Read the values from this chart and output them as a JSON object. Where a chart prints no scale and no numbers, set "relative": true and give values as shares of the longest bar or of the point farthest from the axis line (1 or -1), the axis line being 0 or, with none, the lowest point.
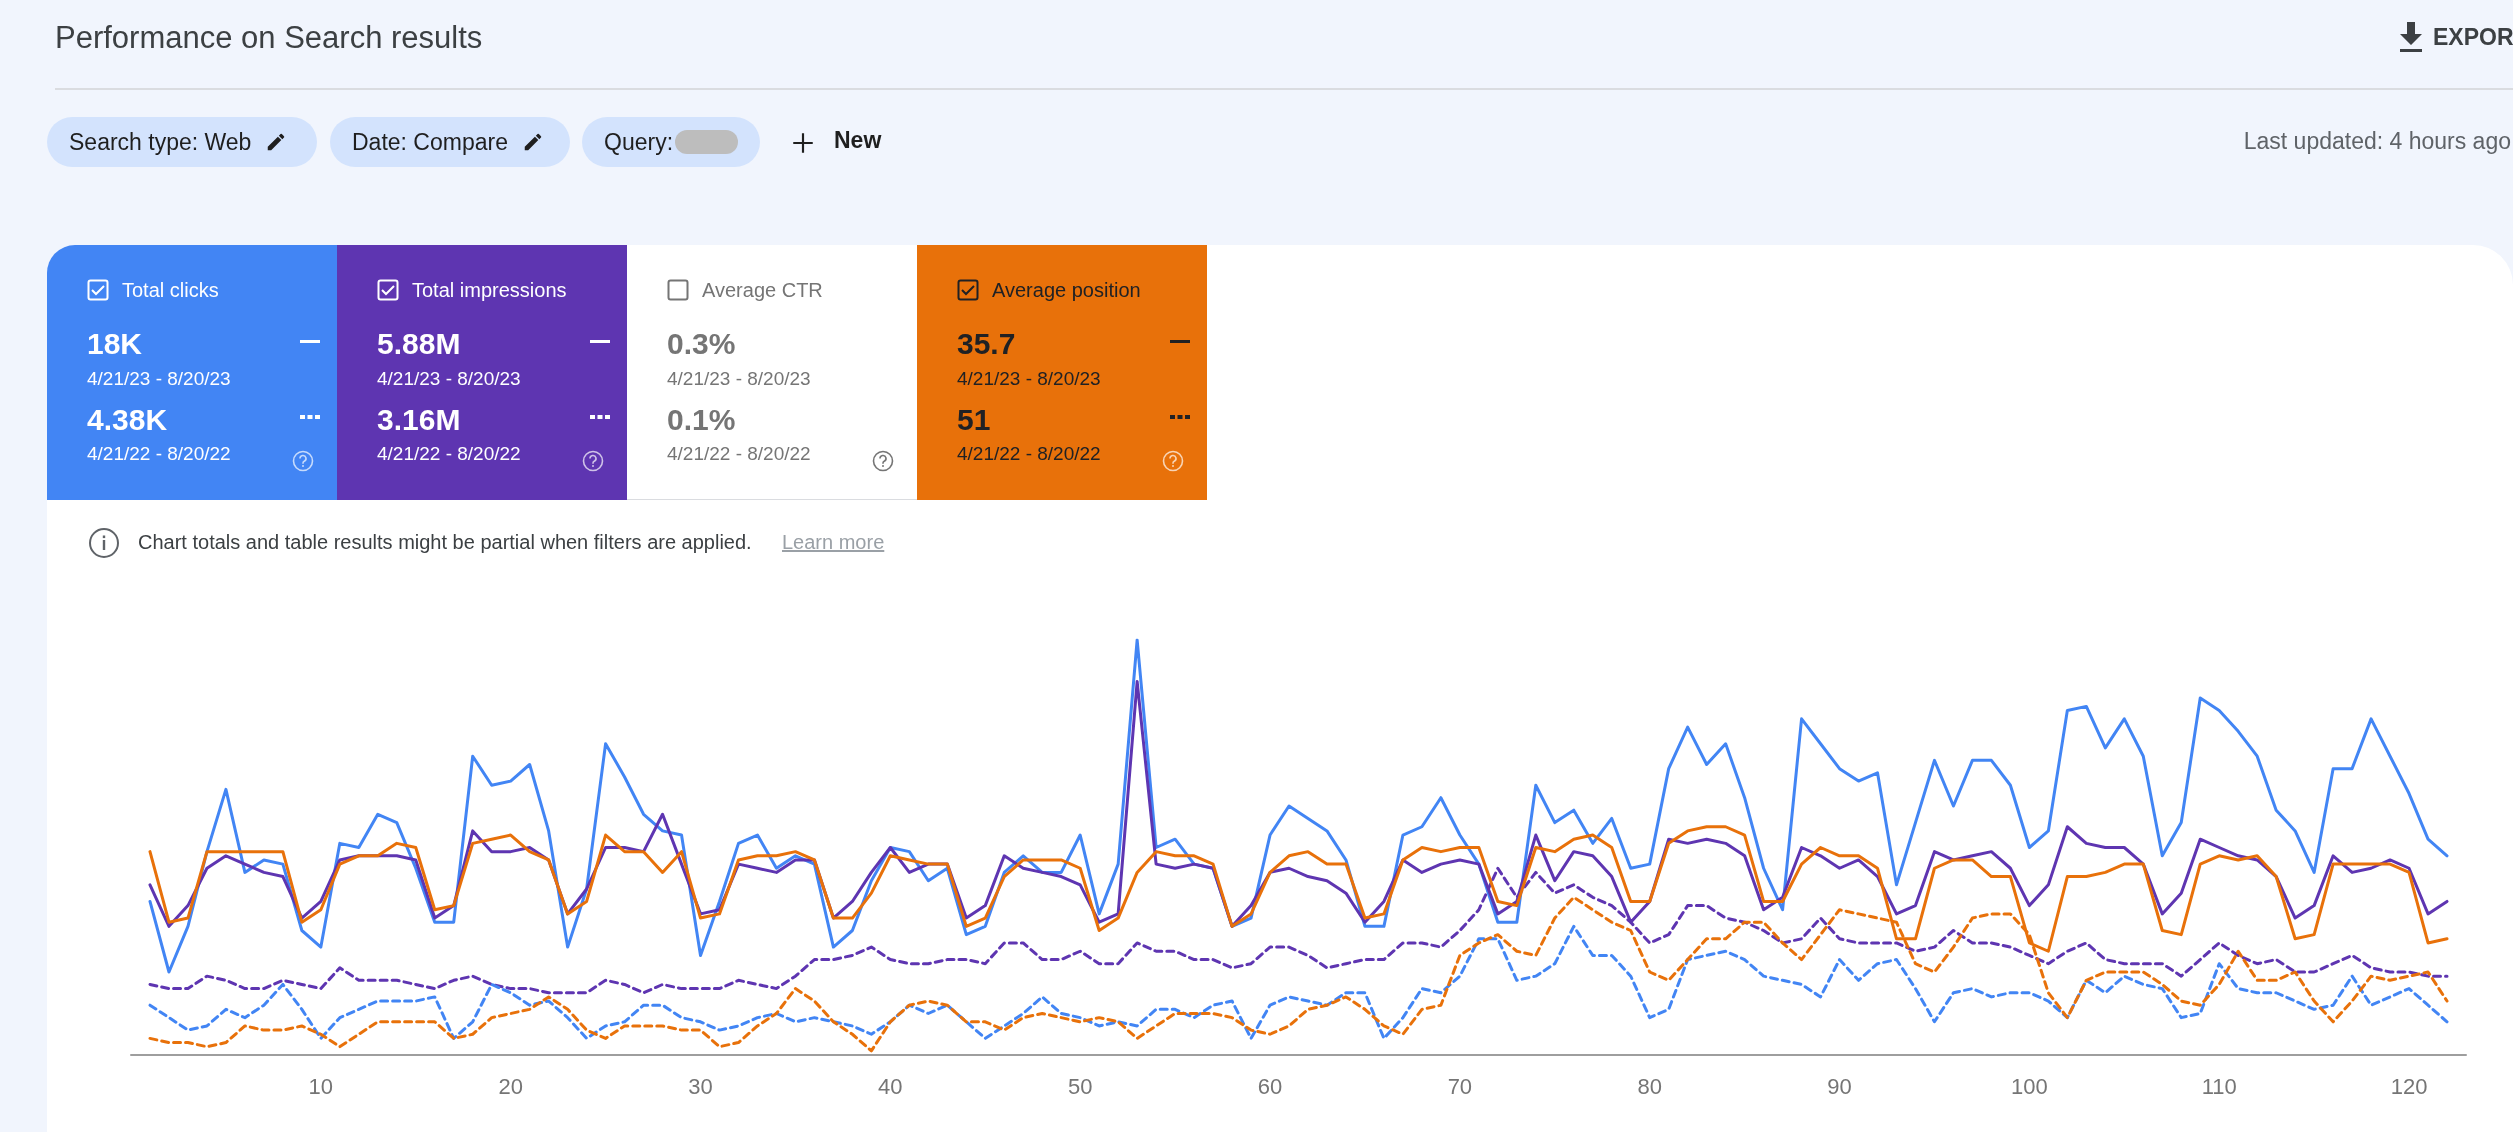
{
  "chart_data": {
    "type": "line",
    "title": "Performance on Search results",
    "relative": true,
    "xlim": [
      0,
      123
    ],
    "xticks": [
      10,
      20,
      30,
      40,
      50,
      60,
      70,
      80,
      90,
      100,
      110,
      120
    ],
    "x": [
      1,
      2,
      3,
      4,
      5,
      6,
      7,
      8,
      9,
      10,
      11,
      12,
      13,
      14,
      15,
      16,
      17,
      18,
      19,
      20,
      21,
      22,
      23,
      24,
      25,
      26,
      27,
      28,
      29,
      30,
      31,
      32,
      33,
      34,
      35,
      36,
      37,
      38,
      39,
      40,
      41,
      42,
      43,
      44,
      45,
      46,
      47,
      48,
      49,
      50,
      51,
      52,
      53,
      54,
      55,
      56,
      57,
      58,
      59,
      60,
      61,
      62,
      63,
      64,
      65,
      66,
      67,
      68,
      69,
      70,
      71,
      72,
      73,
      74,
      75,
      76,
      77,
      78,
      79,
      80,
      81,
      82,
      83,
      84,
      85,
      86,
      87,
      88,
      89,
      90,
      91,
      92,
      93,
      94,
      95,
      96,
      97,
      98,
      99,
      100,
      101,
      102,
      103,
      104,
      105,
      106,
      107,
      108,
      109,
      110,
      111,
      112,
      113,
      114,
      115,
      116,
      117,
      118,
      119,
      120,
      121,
      122
    ],
    "series": [
      {
        "color": "#4285f4",
        "line_style": "solid",
        "values": [
          0.37,
          0.2,
          0.31,
          0.49,
          0.64,
          0.44,
          0.47,
          0.46,
          0.3,
          0.26,
          0.51,
          0.5,
          0.58,
          0.56,
          0.45,
          0.32,
          0.32,
          0.72,
          0.65,
          0.66,
          0.7,
          0.54,
          0.26,
          0.4,
          0.75,
          0.67,
          0.58,
          0.54,
          0.53,
          0.24,
          0.37,
          0.51,
          0.53,
          0.45,
          0.48,
          0.46,
          0.26,
          0.3,
          0.42,
          0.5,
          0.49,
          0.42,
          0.45,
          0.29,
          0.31,
          0.44,
          0.48,
          0.44,
          0.44,
          0.53,
          0.34,
          0.46,
          1.0,
          0.5,
          0.52,
          0.46,
          0.45,
          0.31,
          0.33,
          0.53,
          0.6,
          0.57,
          0.54,
          0.47,
          0.31,
          0.31,
          0.53,
          0.55,
          0.62,
          0.53,
          0.46,
          0.32,
          0.32,
          0.65,
          0.56,
          0.59,
          0.51,
          0.57,
          0.45,
          0.46,
          0.69,
          0.79,
          0.7,
          0.75,
          0.62,
          0.45,
          0.35,
          0.81,
          0.75,
          0.69,
          0.66,
          0.68,
          0.41,
          0.56,
          0.71,
          0.6,
          0.71,
          0.71,
          0.65,
          0.5,
          0.54,
          0.83,
          0.84,
          0.74,
          0.81,
          0.72,
          0.48,
          0.56,
          0.86,
          0.83,
          0.78,
          0.72,
          0.59,
          0.54,
          0.44,
          0.69,
          0.69,
          0.81,
          0.72,
          0.63,
          0.52,
          0.48
        ]
      },
      {
        "color": "#5e35b1",
        "line_style": "solid",
        "values": [
          0.41,
          0.31,
          0.36,
          0.45,
          0.48,
          0.46,
          0.44,
          0.43,
          0.33,
          0.37,
          0.47,
          0.48,
          0.48,
          0.48,
          0.47,
          0.33,
          0.36,
          0.54,
          0.49,
          0.49,
          0.5,
          0.47,
          0.34,
          0.4,
          0.5,
          0.5,
          0.49,
          0.58,
          0.46,
          0.34,
          0.35,
          0.46,
          0.45,
          0.44,
          0.47,
          0.47,
          0.33,
          0.37,
          0.44,
          0.5,
          0.44,
          0.46,
          0.46,
          0.33,
          0.36,
          0.48,
          0.45,
          0.44,
          0.43,
          0.41,
          0.32,
          0.34,
          0.9,
          0.46,
          0.45,
          0.46,
          0.45,
          0.31,
          0.36,
          0.44,
          0.45,
          0.43,
          0.42,
          0.39,
          0.32,
          0.37,
          0.47,
          0.44,
          0.46,
          0.47,
          0.46,
          0.34,
          0.37,
          0.53,
          0.42,
          0.49,
          0.48,
          0.43,
          0.32,
          0.37,
          0.52,
          0.51,
          0.52,
          0.51,
          0.48,
          0.35,
          0.38,
          0.5,
          0.48,
          0.45,
          0.47,
          0.43,
          0.34,
          0.36,
          0.49,
          0.47,
          0.48,
          0.49,
          0.45,
          0.36,
          0.41,
          0.55,
          0.51,
          0.5,
          0.5,
          0.46,
          0.34,
          0.39,
          0.52,
          0.5,
          0.48,
          0.47,
          0.43,
          0.33,
          0.36,
          0.48,
          0.44,
          0.45,
          0.47,
          0.45,
          0.34,
          0.37
        ]
      },
      {
        "color": "#e8710a",
        "line_style": "solid",
        "values": [
          0.49,
          0.32,
          0.33,
          0.49,
          0.49,
          0.49,
          0.49,
          0.49,
          0.32,
          0.35,
          0.46,
          0.48,
          0.48,
          0.51,
          0.5,
          0.35,
          0.36,
          0.51,
          0.52,
          0.53,
          0.49,
          0.47,
          0.34,
          0.37,
          0.53,
          0.49,
          0.49,
          0.44,
          0.49,
          0.33,
          0.34,
          0.47,
          0.48,
          0.48,
          0.49,
          0.47,
          0.33,
          0.33,
          0.39,
          0.48,
          0.47,
          0.46,
          0.46,
          0.31,
          0.33,
          0.43,
          0.47,
          0.47,
          0.47,
          0.45,
          0.3,
          0.33,
          0.44,
          0.49,
          0.48,
          0.48,
          0.46,
          0.31,
          0.34,
          0.44,
          0.48,
          0.49,
          0.46,
          0.46,
          0.33,
          0.34,
          0.47,
          0.5,
          0.49,
          0.5,
          0.5,
          0.37,
          0.36,
          0.5,
          0.49,
          0.52,
          0.53,
          0.5,
          0.37,
          0.37,
          0.51,
          0.54,
          0.55,
          0.55,
          0.53,
          0.37,
          0.37,
          0.46,
          0.5,
          0.48,
          0.48,
          0.45,
          0.28,
          0.28,
          0.45,
          0.47,
          0.47,
          0.43,
          0.43,
          0.27,
          0.25,
          0.43,
          0.43,
          0.44,
          0.46,
          0.46,
          0.3,
          0.29,
          0.46,
          0.48,
          0.47,
          0.48,
          0.43,
          0.28,
          0.29,
          0.46,
          0.46,
          0.46,
          0.46,
          0.44,
          0.27,
          0.28
        ]
      },
      {
        "color": "#5e35b1",
        "line_style": "dashed",
        "values": [
          0.17,
          0.16,
          0.16,
          0.19,
          0.18,
          0.16,
          0.16,
          0.18,
          0.17,
          0.16,
          0.21,
          0.18,
          0.18,
          0.18,
          0.17,
          0.16,
          0.18,
          0.19,
          0.17,
          0.16,
          0.16,
          0.15,
          0.15,
          0.15,
          0.18,
          0.17,
          0.15,
          0.17,
          0.16,
          0.16,
          0.16,
          0.18,
          0.17,
          0.16,
          0.19,
          0.23,
          0.23,
          0.24,
          0.26,
          0.23,
          0.22,
          0.22,
          0.23,
          0.23,
          0.22,
          0.27,
          0.27,
          0.23,
          0.23,
          0.25,
          0.22,
          0.22,
          0.27,
          0.25,
          0.25,
          0.23,
          0.23,
          0.21,
          0.22,
          0.26,
          0.26,
          0.24,
          0.21,
          0.22,
          0.23,
          0.23,
          0.27,
          0.27,
          0.26,
          0.3,
          0.35,
          0.45,
          0.38,
          0.44,
          0.39,
          0.41,
          0.38,
          0.36,
          0.32,
          0.27,
          0.29,
          0.36,
          0.36,
          0.33,
          0.32,
          0.3,
          0.27,
          0.28,
          0.33,
          0.28,
          0.27,
          0.27,
          0.27,
          0.25,
          0.26,
          0.3,
          0.27,
          0.27,
          0.26,
          0.24,
          0.22,
          0.25,
          0.27,
          0.23,
          0.22,
          0.22,
          0.22,
          0.19,
          0.23,
          0.27,
          0.24,
          0.22,
          0.23,
          0.2,
          0.2,
          0.22,
          0.24,
          0.21,
          0.2,
          0.2,
          0.19,
          0.19
        ]
      },
      {
        "color": "#4285f4",
        "line_style": "dashed",
        "values": [
          0.12,
          0.09,
          0.06,
          0.07,
          0.11,
          0.09,
          0.12,
          0.17,
          0.11,
          0.04,
          0.09,
          0.11,
          0.13,
          0.13,
          0.13,
          0.14,
          0.04,
          0.08,
          0.17,
          0.15,
          0.12,
          0.13,
          0.09,
          0.04,
          0.07,
          0.08,
          0.12,
          0.12,
          0.09,
          0.08,
          0.06,
          0.07,
          0.09,
          0.1,
          0.08,
          0.09,
          0.08,
          0.07,
          0.05,
          0.08,
          0.12,
          0.1,
          0.12,
          0.08,
          0.04,
          0.07,
          0.1,
          0.14,
          0.1,
          0.09,
          0.07,
          0.08,
          0.07,
          0.11,
          0.11,
          0.09,
          0.12,
          0.13,
          0.04,
          0.12,
          0.14,
          0.13,
          0.12,
          0.15,
          0.15,
          0.04,
          0.09,
          0.16,
          0.15,
          0.19,
          0.28,
          0.28,
          0.18,
          0.19,
          0.22,
          0.31,
          0.24,
          0.24,
          0.19,
          0.09,
          0.11,
          0.23,
          0.24,
          0.25,
          0.23,
          0.19,
          0.18,
          0.17,
          0.14,
          0.23,
          0.18,
          0.22,
          0.23,
          0.16,
          0.08,
          0.15,
          0.16,
          0.14,
          0.15,
          0.15,
          0.13,
          0.09,
          0.18,
          0.15,
          0.19,
          0.17,
          0.16,
          0.09,
          0.1,
          0.22,
          0.16,
          0.15,
          0.15,
          0.13,
          0.11,
          0.12,
          0.19,
          0.12,
          0.14,
          0.16,
          0.12,
          0.08
        ]
      },
      {
        "color": "#e8710a",
        "line_style": "dashed",
        "values": [
          0.04,
          0.03,
          0.03,
          0.02,
          0.03,
          0.07,
          0.06,
          0.06,
          0.07,
          0.05,
          0.02,
          0.05,
          0.08,
          0.08,
          0.08,
          0.08,
          0.04,
          0.05,
          0.09,
          0.1,
          0.11,
          0.14,
          0.11,
          0.06,
          0.04,
          0.07,
          0.07,
          0.07,
          0.06,
          0.06,
          0.02,
          0.03,
          0.07,
          0.1,
          0.16,
          0.13,
          0.08,
          0.05,
          0.01,
          0.08,
          0.12,
          0.13,
          0.12,
          0.08,
          0.08,
          0.06,
          0.09,
          0.1,
          0.09,
          0.08,
          0.09,
          0.08,
          0.04,
          0.07,
          0.1,
          0.1,
          0.1,
          0.09,
          0.06,
          0.05,
          0.07,
          0.11,
          0.12,
          0.14,
          0.11,
          0.07,
          0.05,
          0.11,
          0.12,
          0.24,
          0.27,
          0.29,
          0.25,
          0.24,
          0.33,
          0.38,
          0.35,
          0.32,
          0.3,
          0.2,
          0.18,
          0.23,
          0.28,
          0.28,
          0.32,
          0.32,
          0.27,
          0.23,
          0.29,
          0.35,
          0.34,
          0.33,
          0.32,
          0.22,
          0.2,
          0.26,
          0.33,
          0.34,
          0.34,
          0.29,
          0.15,
          0.09,
          0.18,
          0.2,
          0.2,
          0.2,
          0.17,
          0.13,
          0.12,
          0.17,
          0.25,
          0.18,
          0.18,
          0.2,
          0.13,
          0.08,
          0.13,
          0.19,
          0.18,
          0.19,
          0.2,
          0.13
        ]
      }
    ],
    "annotations": [
      "Search type: Web",
      "Date: Compare",
      "Query:",
      "New",
      "Last updated: 4 hours ago",
      "EXPOR",
      "Total clicks",
      "18K",
      "4/21/23 - 8/20/23",
      "4.38K",
      "4/21/22 - 8/20/22",
      "Total impressions",
      "5.88M",
      "4/21/23 - 8/20/23",
      "3.16M",
      "4/21/22 - 8/20/22",
      "Average CTR",
      "0.3%",
      "4/21/23 - 8/20/23",
      "0.1%",
      "4/21/22 - 8/20/22",
      "Average position",
      "35.7",
      "4/21/23 - 8/20/23",
      "51",
      "4/21/22 - 8/20/22",
      "Chart totals and table results might be partial when filters are applied.",
      "Learn more"
    ]
  }
}
